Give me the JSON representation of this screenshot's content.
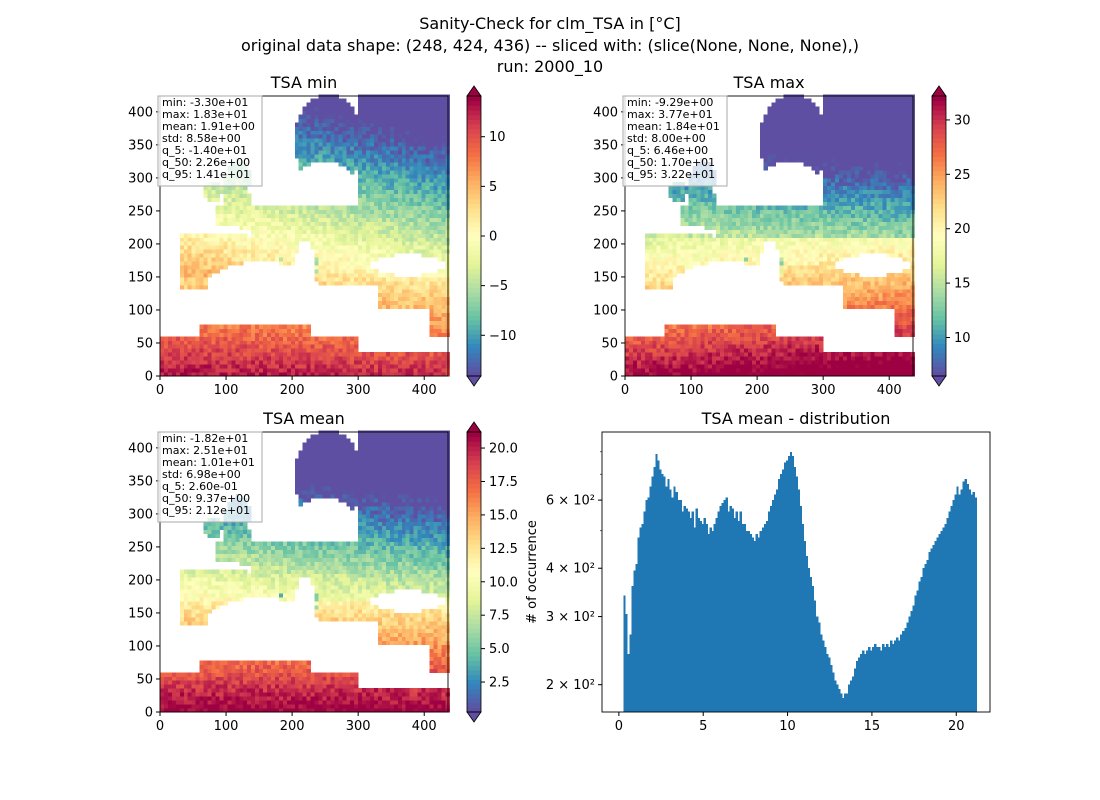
{
  "figure": {
    "title_lines": [
      "Sanity-Check for clm_TSA in [°C]",
      "original data shape: (248, 424, 436) -- sliced with: (slice(None, None, None),)",
      "run: 2000_10"
    ]
  },
  "chart_data": [
    {
      "type": "heatmap",
      "title": "TSA min",
      "xlabel": "",
      "ylabel": "",
      "xlim": [
        0,
        436
      ],
      "ylim": [
        0,
        424
      ],
      "x_ticks": [
        "0",
        "100",
        "200",
        "300",
        "400"
      ],
      "y_ticks": [
        "0",
        "50",
        "100",
        "150",
        "200",
        "250",
        "300",
        "350",
        "400"
      ],
      "colormap": "Spectral_r",
      "colorbar": {
        "range": [
          -14.1,
          14.1
        ],
        "ticks": [
          "−10",
          "−5",
          "0",
          "5",
          "10"
        ],
        "tick_values": [
          -10,
          -5,
          0,
          5,
          10
        ]
      },
      "stats": [
        "min: -3.30e+01",
        "max: 1.83e+01",
        "mean: 1.91e+00",
        "std: 8.58e+00",
        "q_5: -1.40e+01",
        "q_50: 2.26e+00",
        "q_95: 1.41e+01"
      ]
    },
    {
      "type": "heatmap",
      "title": "TSA max",
      "xlabel": "",
      "ylabel": "",
      "xlim": [
        0,
        436
      ],
      "ylim": [
        0,
        424
      ],
      "x_ticks": [
        "0",
        "100",
        "200",
        "300",
        "400"
      ],
      "y_ticks": [
        "0",
        "50",
        "100",
        "150",
        "200",
        "250",
        "300",
        "350",
        "400"
      ],
      "colormap": "Spectral_r",
      "colorbar": {
        "range": [
          6.46,
          32.2
        ],
        "ticks": [
          "10",
          "15",
          "20",
          "25",
          "30"
        ],
        "tick_values": [
          10,
          15,
          20,
          25,
          30
        ]
      },
      "stats": [
        "min: -9.29e+00",
        "max: 3.77e+01",
        "mean: 1.84e+01",
        "std: 8.00e+00",
        "q_5: 6.46e+00",
        "q_50: 1.70e+01",
        "q_95: 3.22e+01"
      ]
    },
    {
      "type": "heatmap",
      "title": "TSA mean",
      "xlabel": "",
      "ylabel": "",
      "xlim": [
        0,
        436
      ],
      "ylim": [
        0,
        424
      ],
      "x_ticks": [
        "0",
        "100",
        "200",
        "300",
        "400"
      ],
      "y_ticks": [
        "0",
        "50",
        "100",
        "150",
        "200",
        "250",
        "300",
        "350",
        "400"
      ],
      "colormap": "Spectral_r",
      "colorbar": {
        "range": [
          0.26,
          21.2
        ],
        "ticks": [
          "2.5",
          "5.0",
          "7.5",
          "10.0",
          "12.5",
          "15.0",
          "17.5",
          "20.0"
        ],
        "tick_values": [
          2.5,
          5,
          7.5,
          10,
          12.5,
          15,
          17.5,
          20
        ]
      },
      "stats": [
        "min: -1.82e+01",
        "max: 2.51e+01",
        "mean: 1.01e+01",
        "std: 6.98e+00",
        "q_5: 2.60e-01",
        "q_50: 9.37e+00",
        "q_95: 2.12e+01"
      ]
    },
    {
      "type": "bar",
      "title": "TSA mean - distribution",
      "xlabel": "",
      "ylabel": "# of occurrence",
      "yscale": "log",
      "xlim": [
        -1.0,
        22.0
      ],
      "ylim": [
        170,
        900
      ],
      "x_ticks": [
        "0",
        "5",
        "10",
        "15",
        "20"
      ],
      "x_tick_values": [
        0,
        5,
        10,
        15,
        20
      ],
      "y_ticks": [
        "2 × 10²",
        "3 × 10²",
        "4 × 10²",
        "6 × 10²"
      ],
      "y_tick_values": [
        200,
        300,
        400,
        600
      ],
      "bin_range": [
        0.26,
        21.2
      ],
      "color": "#1f77b4",
      "values": [
        340,
        305,
        240,
        270,
        360,
        395,
        410,
        480,
        510,
        520,
        560,
        600,
        610,
        650,
        690,
        730,
        790,
        760,
        720,
        700,
        690,
        650,
        680,
        640,
        610,
        650,
        630,
        600,
        600,
        560,
        580,
        570,
        560,
        540,
        560,
        510,
        570,
        540,
        530,
        520,
        540,
        520,
        490,
        510,
        500,
        520,
        540,
        560,
        580,
        590,
        600,
        610,
        560,
        580,
        570,
        540,
        560,
        530,
        560,
        520,
        520,
        500,
        500,
        490,
        480,
        470,
        490,
        480,
        500,
        510,
        520,
        530,
        560,
        580,
        600,
        620,
        640,
        680,
        700,
        720,
        750,
        760,
        780,
        800,
        780,
        730,
        690,
        640,
        580,
        520,
        470,
        430,
        400,
        380,
        360,
        330,
        300,
        290,
        270,
        260,
        250,
        240,
        235,
        225,
        215,
        205,
        200,
        195,
        190,
        185,
        190,
        190,
        200,
        205,
        210,
        220,
        230,
        235,
        240,
        245,
        240,
        245,
        250,
        245,
        250,
        255,
        250,
        250,
        245,
        255,
        250,
        255,
        250,
        260,
        255,
        260,
        265,
        260,
        270,
        275,
        280,
        290,
        300,
        310,
        320,
        340,
        350,
        370,
        380,
        400,
        410,
        420,
        440,
        450,
        460,
        470,
        480,
        490,
        500,
        510,
        520,
        540,
        560,
        580,
        600,
        620,
        650,
        620,
        640,
        670,
        680,
        660,
        640,
        620,
        630,
        610
      ]
    }
  ]
}
